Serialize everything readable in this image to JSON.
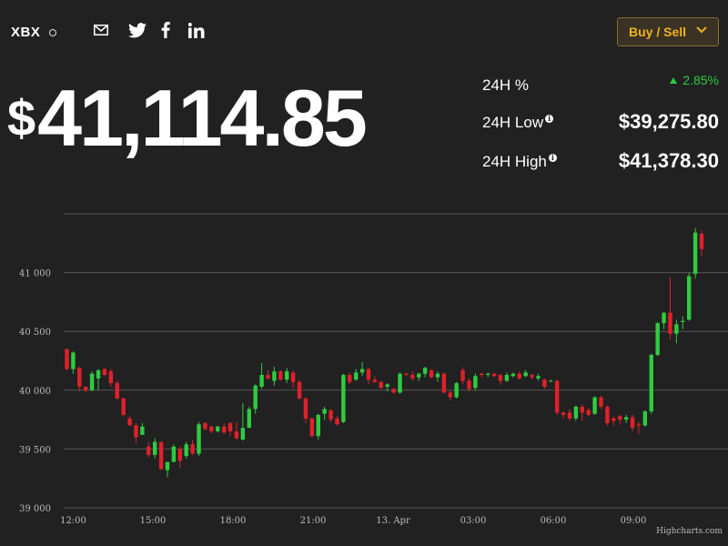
{
  "header": {
    "ticker": "XBX",
    "buy_sell_label": "Buy / Sell",
    "share_icons": [
      "mail-icon",
      "twitter-icon",
      "facebook-icon",
      "linkedin-icon"
    ],
    "accent_color": "#f0b21a"
  },
  "price": {
    "currency": "$",
    "value": "41,114.85"
  },
  "stats": {
    "pct_label": "24H %",
    "pct_value": "2.85%",
    "low_label": "24H Low",
    "low_value": "$39,275.80",
    "high_label": "24H High",
    "high_value": "$41,378.30"
  },
  "chart_data": {
    "type": "candlestick",
    "title": "",
    "xlabel": "",
    "ylabel": "",
    "ylim": [
      39000,
      41500
    ],
    "yticks": [
      39000,
      39500,
      40000,
      40500,
      41000
    ],
    "ytick_labels": [
      "39 000",
      "39 500",
      "40 000",
      "40 500",
      "41 000"
    ],
    "xticks": [
      "12:00",
      "15:00",
      "18:00",
      "21:00",
      "13. Apr",
      "03:00",
      "06:00",
      "09:00"
    ],
    "grid": true,
    "credit": "Highcharts.com",
    "up_color": "#2ecc40",
    "down_color": "#e0212b",
    "candles": [
      [
        40350,
        40350,
        40170,
        40180
      ],
      [
        40180,
        40330,
        40140,
        40320
      ],
      [
        40190,
        40200,
        39990,
        40030
      ],
      [
        40030,
        40030,
        39980,
        40000
      ],
      [
        40000,
        40160,
        39990,
        40140
      ],
      [
        40100,
        40180,
        40000,
        40170
      ],
      [
        40180,
        40190,
        40120,
        40130
      ],
      [
        40160,
        40180,
        40030,
        40060
      ],
      [
        40060,
        40080,
        39920,
        39930
      ],
      [
        39930,
        39940,
        39780,
        39790
      ],
      [
        39760,
        39780,
        39700,
        39700
      ],
      [
        39700,
        39720,
        39550,
        39600
      ],
      [
        39620,
        39720,
        39620,
        39690
      ],
      [
        39520,
        39560,
        39430,
        39450
      ],
      [
        39450,
        39590,
        39420,
        39560
      ],
      [
        39560,
        39560,
        39320,
        39330
      ],
      [
        39320,
        39390,
        39260,
        39390
      ],
      [
        39390,
        39540,
        39390,
        39520
      ],
      [
        39500,
        39520,
        39340,
        39400
      ],
      [
        39440,
        39560,
        39420,
        39540
      ],
      [
        39540,
        39580,
        39450,
        39460
      ],
      [
        39460,
        39730,
        39440,
        39710
      ],
      [
        39720,
        39730,
        39660,
        39670
      ],
      [
        39690,
        39700,
        39630,
        39650
      ],
      [
        39650,
        39700,
        39640,
        39690
      ],
      [
        39690,
        39720,
        39630,
        39640
      ],
      [
        39720,
        39730,
        39610,
        39650
      ],
      [
        39650,
        39730,
        39580,
        39590
      ],
      [
        39580,
        39890,
        39570,
        39680
      ],
      [
        39680,
        39860,
        39680,
        39840
      ],
      [
        39840,
        40050,
        39800,
        40040
      ],
      [
        40030,
        40230,
        40010,
        40130
      ],
      [
        40130,
        40170,
        40090,
        40100
      ],
      [
        40080,
        40200,
        40040,
        40160
      ],
      [
        40160,
        40170,
        40080,
        40090
      ],
      [
        40090,
        40190,
        40060,
        40160
      ],
      [
        40150,
        40170,
        40020,
        40070
      ],
      [
        40070,
        40090,
        39920,
        39930
      ],
      [
        39930,
        39940,
        39720,
        39760
      ],
      [
        39760,
        39770,
        39600,
        39610
      ],
      [
        39610,
        39800,
        39580,
        39790
      ],
      [
        39800,
        39860,
        39750,
        39840
      ],
      [
        39830,
        39840,
        39730,
        39750
      ],
      [
        39760,
        39780,
        39700,
        39710
      ],
      [
        39730,
        40140,
        39720,
        40130
      ],
      [
        40130,
        40150,
        40050,
        40070
      ],
      [
        40090,
        40180,
        40080,
        40150
      ],
      [
        40150,
        40240,
        40120,
        40180
      ],
      [
        40180,
        40190,
        40050,
        40090
      ],
      [
        40090,
        40120,
        40060,
        40070
      ],
      [
        40070,
        40080,
        40010,
        40020
      ],
      [
        40030,
        40060,
        39990,
        40050
      ],
      [
        40010,
        40020,
        39970,
        39980
      ],
      [
        39980,
        40150,
        39970,
        40140
      ],
      [
        40140,
        40150,
        40120,
        40130
      ],
      [
        40130,
        40160,
        40080,
        40100
      ],
      [
        40110,
        40150,
        40080,
        40140
      ],
      [
        40140,
        40200,
        40110,
        40190
      ],
      [
        40170,
        40180,
        40100,
        40110
      ],
      [
        40110,
        40160,
        40070,
        40140
      ],
      [
        40140,
        40150,
        39970,
        39980
      ],
      [
        39980,
        40000,
        39910,
        39940
      ],
      [
        39940,
        40070,
        39930,
        40060
      ],
      [
        40170,
        40190,
        40050,
        40080
      ],
      [
        40080,
        40100,
        39990,
        40010
      ],
      [
        40020,
        40140,
        40000,
        40120
      ],
      [
        40140,
        40150,
        40110,
        40130
      ],
      [
        40130,
        40150,
        40110,
        40140
      ],
      [
        40140,
        40150,
        40110,
        40120
      ],
      [
        40130,
        40140,
        40050,
        40080
      ],
      [
        40080,
        40150,
        40070,
        40130
      ],
      [
        40120,
        40150,
        40110,
        40140
      ],
      [
        40140,
        40160,
        40090,
        40100
      ],
      [
        40120,
        40170,
        40110,
        40150
      ],
      [
        40130,
        40140,
        40090,
        40110
      ],
      [
        40100,
        40140,
        40080,
        40120
      ],
      [
        40090,
        40100,
        40010,
        40030
      ],
      [
        40080,
        40090,
        40070,
        40080
      ],
      [
        40080,
        40090,
        39790,
        39810
      ],
      [
        39810,
        39820,
        39760,
        39790
      ],
      [
        39810,
        39840,
        39740,
        39760
      ],
      [
        39760,
        39870,
        39740,
        39860
      ],
      [
        39860,
        39880,
        39740,
        39810
      ],
      [
        39830,
        39850,
        39780,
        39790
      ],
      [
        39800,
        39950,
        39790,
        39940
      ],
      [
        39940,
        39950,
        39840,
        39860
      ],
      [
        39860,
        39870,
        39700,
        39720
      ],
      [
        39760,
        39780,
        39700,
        39740
      ],
      [
        39780,
        39790,
        39710,
        39750
      ],
      [
        39750,
        39790,
        39720,
        39770
      ],
      [
        39770,
        39790,
        39650,
        39680
      ],
      [
        39710,
        39730,
        39630,
        39700
      ],
      [
        39700,
        39830,
        39690,
        39820
      ],
      [
        39820,
        40310,
        39800,
        40300
      ],
      [
        40300,
        40580,
        40290,
        40570
      ],
      [
        40570,
        40660,
        40520,
        40660
      ],
      [
        40660,
        40960,
        40430,
        40480
      ],
      [
        40480,
        40600,
        40400,
        40560
      ],
      [
        40580,
        40630,
        40520,
        40590
      ],
      [
        40600,
        41000,
        40590,
        40970
      ],
      [
        40990,
        41380,
        40950,
        41340
      ],
      [
        41330,
        41360,
        41140,
        41200
      ]
    ]
  }
}
